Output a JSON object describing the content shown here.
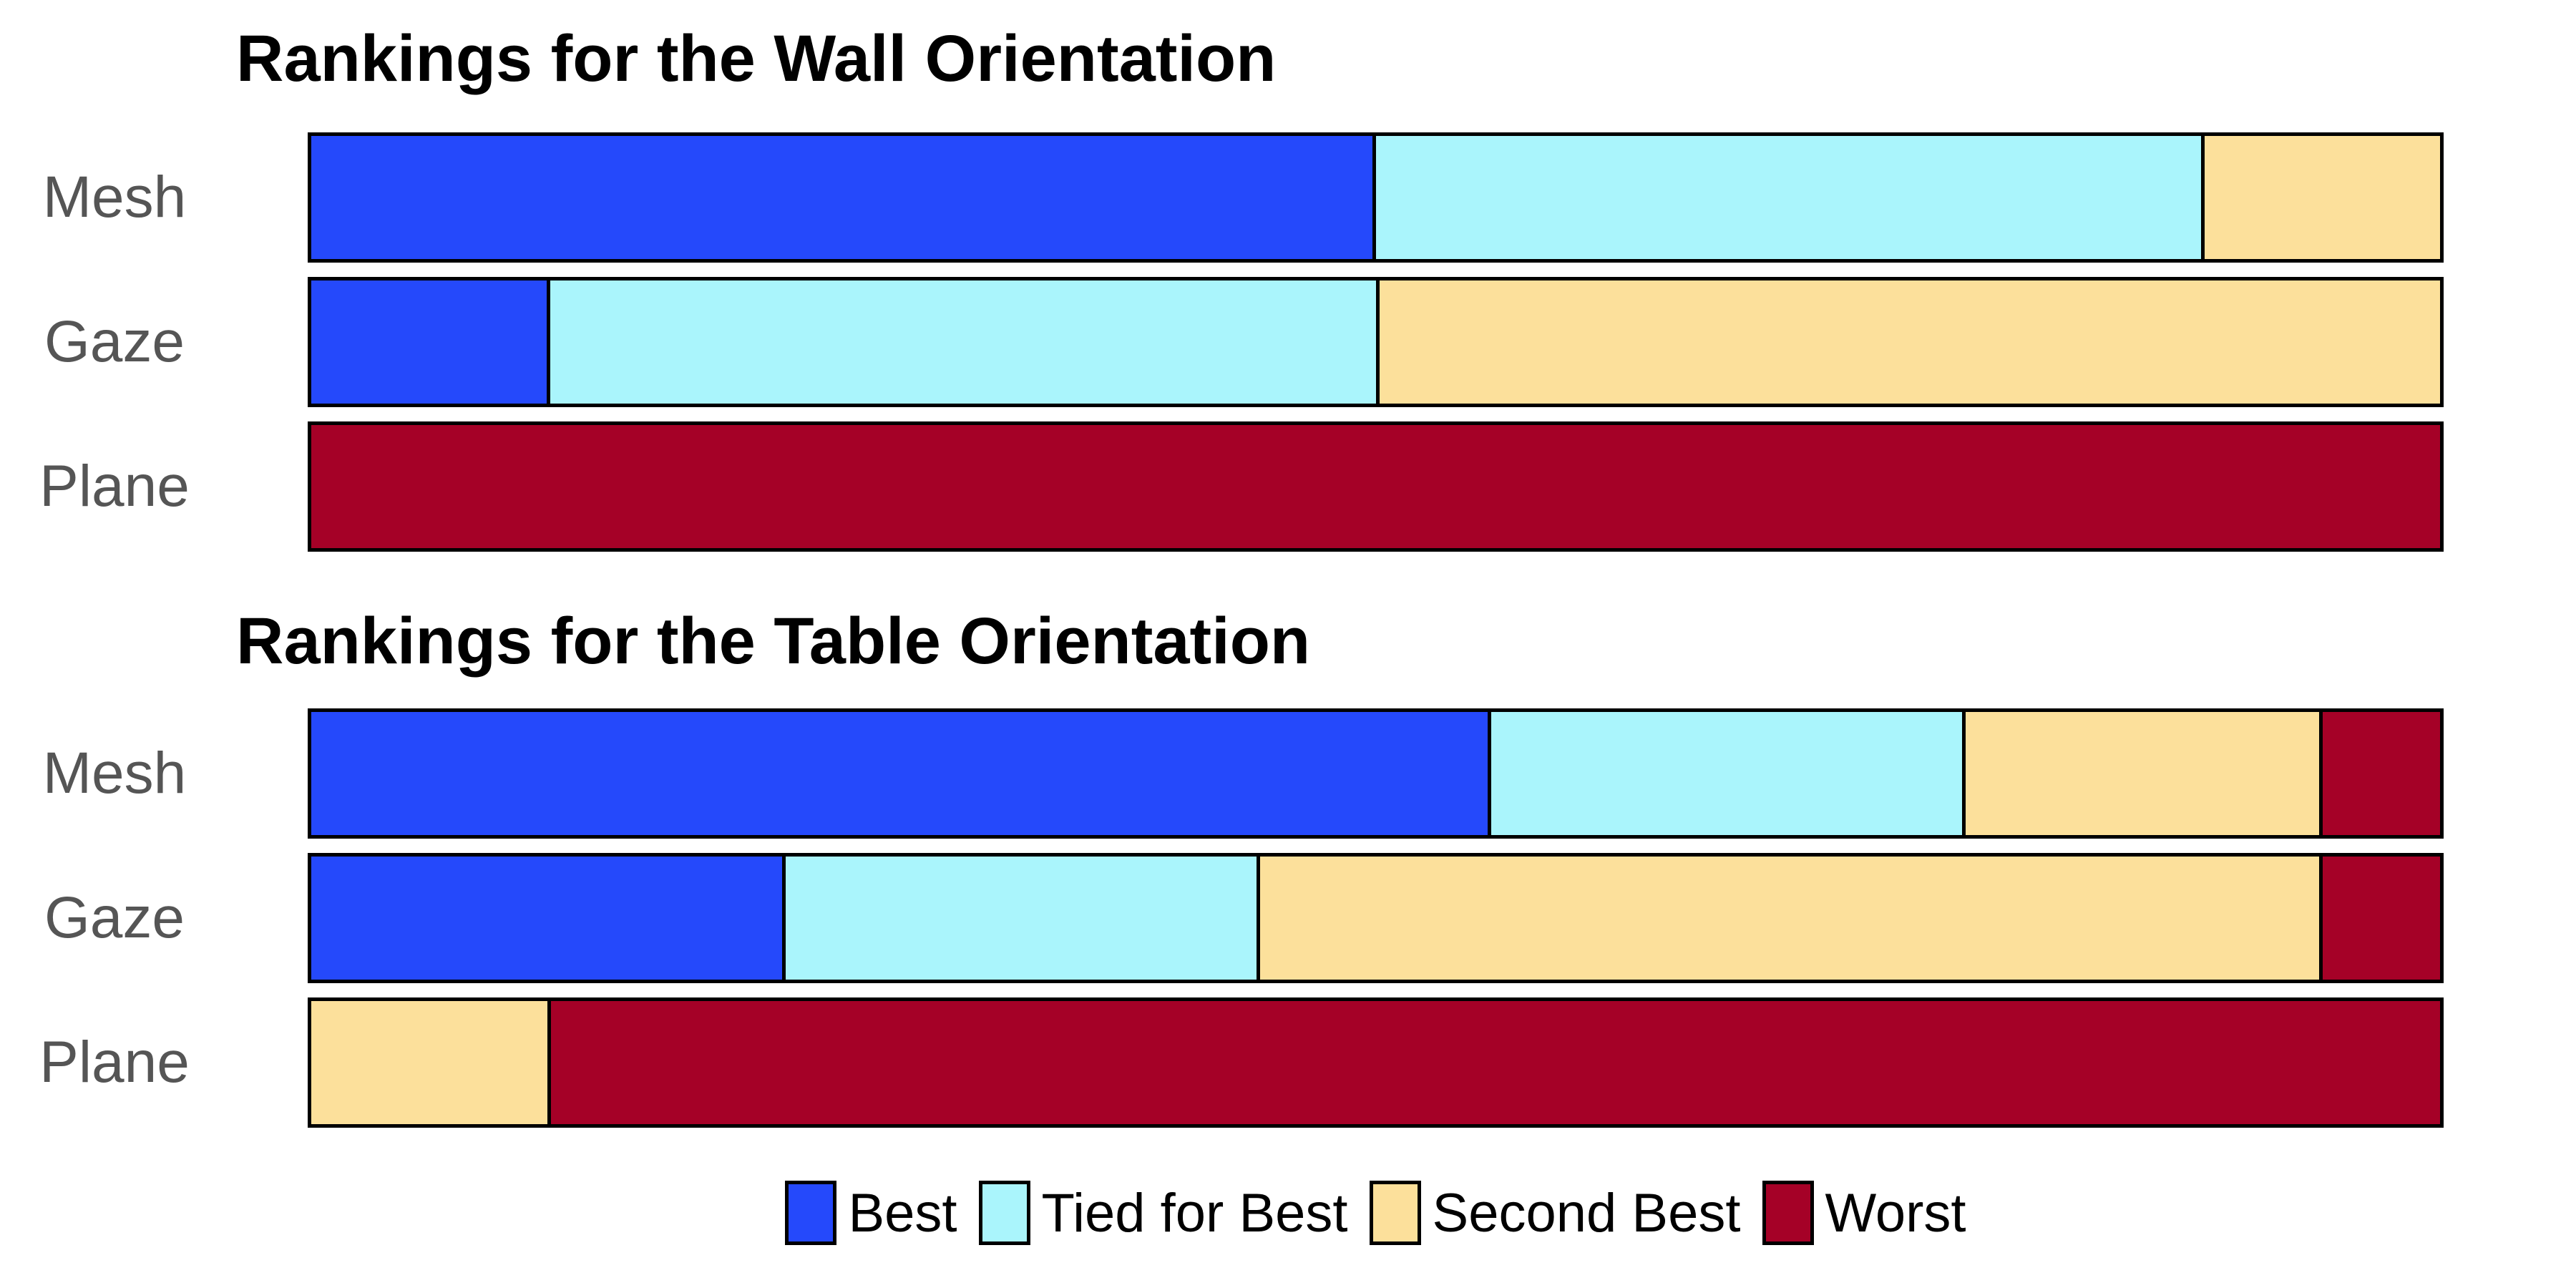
{
  "colors": {
    "best": "#2549FB",
    "tied_for_best": "#AAF5FC",
    "second_best": "#FCE09B",
    "worst": "#A50127",
    "bar_border": "#000000",
    "row_label": "#555555",
    "title": "#000000",
    "background": "#FFFFFF"
  },
  "legend": {
    "position": "bottom-center",
    "items": [
      {
        "label": "Best",
        "color_key": "best",
        "swatch": "best-swatch"
      },
      {
        "label": "Tied for Best",
        "color_key": "tied_for_best",
        "swatch": "tied-for-best-swatch"
      },
      {
        "label": "Second Best",
        "color_key": "second_best",
        "swatch": "second-best-swatch"
      },
      {
        "label": "Worst",
        "color_key": "worst",
        "swatch": "worst-swatch"
      }
    ]
  },
  "chart_data": [
    {
      "type": "bar",
      "orientation": "horizontal",
      "stacked": true,
      "title": "Rankings for the Wall Orientation",
      "categories": [
        "Mesh",
        "Gaze",
        "Plane"
      ],
      "xlim": [
        0,
        18
      ],
      "total_per_row": 18,
      "grid": false,
      "axes_visible": false,
      "series": [
        {
          "name": "Best",
          "color_key": "best",
          "values": [
            9,
            2,
            0
          ]
        },
        {
          "name": "Tied for Best",
          "color_key": "tied_for_best",
          "values": [
            7,
            7,
            0
          ]
        },
        {
          "name": "Second Best",
          "color_key": "second_best",
          "values": [
            2,
            9,
            0
          ]
        },
        {
          "name": "Worst",
          "color_key": "worst",
          "values": [
            0,
            0,
            18
          ]
        }
      ]
    },
    {
      "type": "bar",
      "orientation": "horizontal",
      "stacked": true,
      "title": "Rankings for the Table Orientation",
      "categories": [
        "Mesh",
        "Gaze",
        "Plane"
      ],
      "xlim": [
        0,
        18
      ],
      "total_per_row": 18,
      "grid": false,
      "axes_visible": false,
      "series": [
        {
          "name": "Best",
          "color_key": "best",
          "values": [
            10,
            4,
            0
          ]
        },
        {
          "name": "Tied for Best",
          "color_key": "tied_for_best",
          "values": [
            4,
            4,
            0
          ]
        },
        {
          "name": "Second Best",
          "color_key": "second_best",
          "values": [
            3,
            9,
            2
          ]
        },
        {
          "name": "Worst",
          "color_key": "worst",
          "values": [
            1,
            1,
            16
          ]
        }
      ]
    }
  ]
}
